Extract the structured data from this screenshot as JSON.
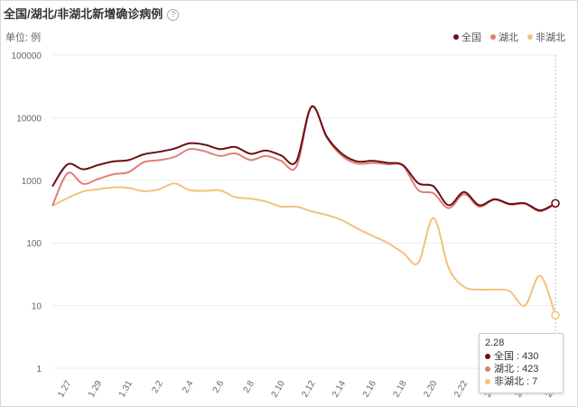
{
  "header": {
    "title": "全国/湖北/非湖北新增确诊病例",
    "help_icon": "question-circle-icon",
    "unit": "单位: 例"
  },
  "legend": [
    {
      "label": "全国",
      "color": "#6b0f14"
    },
    {
      "label": "湖北",
      "color": "#e07f76"
    },
    {
      "label": "非湖北",
      "color": "#f2c27c"
    }
  ],
  "tooltip": {
    "date": "2.28",
    "rows": [
      {
        "name": "全国",
        "value": "430",
        "color": "#6b0f14"
      },
      {
        "name": "湖北",
        "value": "423",
        "color": "#e07f76"
      },
      {
        "name": "非湖北",
        "value": "7",
        "color": "#f2c27c"
      }
    ]
  },
  "chart_data": {
    "type": "line",
    "title": "全国/湖北/非湖北新增确诊病例",
    "unit": "单位: 例",
    "y_scale": "log",
    "ylim": [
      1,
      100000
    ],
    "y_ticks": [
      1,
      10,
      100,
      1000,
      10000,
      100000
    ],
    "y_tick_labels": [
      "1",
      "10",
      "100",
      "1000",
      "10000",
      "100000"
    ],
    "x_tick_labels": [
      "1.27",
      "1.29",
      "1.31",
      "2.2",
      "2.4",
      "2.6",
      "2.8",
      "2.10",
      "2.12",
      "2.14",
      "2.16",
      "2.18",
      "2.20",
      "2.22",
      "2.24",
      "2.26",
      "2.28"
    ],
    "grid": true,
    "legend_position": "top-right",
    "x": [
      "1.26",
      "1.27",
      "1.28",
      "1.29",
      "1.30",
      "1.31",
      "2.1",
      "2.2",
      "2.3",
      "2.4",
      "2.5",
      "2.6",
      "2.7",
      "2.8",
      "2.9",
      "2.10",
      "2.11",
      "2.12",
      "2.13",
      "2.14",
      "2.15",
      "2.16",
      "2.17",
      "2.18",
      "2.19",
      "2.20",
      "2.21",
      "2.22",
      "2.23",
      "2.24",
      "2.25",
      "2.26",
      "2.27",
      "2.28"
    ],
    "series": [
      {
        "name": "全国",
        "color": "#6b0f14",
        "values": [
          800,
          1800,
          1500,
          1750,
          2000,
          2100,
          2600,
          2850,
          3200,
          3900,
          3700,
          3150,
          3400,
          2650,
          3000,
          2500,
          2000,
          15000,
          5000,
          2650,
          2000,
          2050,
          1900,
          1750,
          900,
          800,
          400,
          650,
          400,
          500,
          420,
          430,
          330,
          430
        ]
      },
      {
        "name": "湖北",
        "color": "#e07f76",
        "values": [
          390,
          1300,
          880,
          1050,
          1250,
          1350,
          1950,
          2100,
          2350,
          3150,
          2900,
          2450,
          2700,
          2100,
          2450,
          2050,
          1650,
          14800,
          4800,
          2450,
          1850,
          1900,
          1800,
          1700,
          700,
          620,
          360,
          600,
          380,
          490,
          410,
          420,
          320,
          423
        ]
      },
      {
        "name": "非湖北",
        "color": "#f2c27c",
        "values": [
          390,
          520,
          660,
          720,
          770,
          760,
          670,
          720,
          890,
          700,
          680,
          690,
          540,
          510,
          460,
          380,
          380,
          320,
          280,
          230,
          170,
          130,
          100,
          70,
          48,
          250,
          40,
          20,
          18,
          18,
          17,
          10,
          30,
          7
        ]
      }
    ]
  }
}
